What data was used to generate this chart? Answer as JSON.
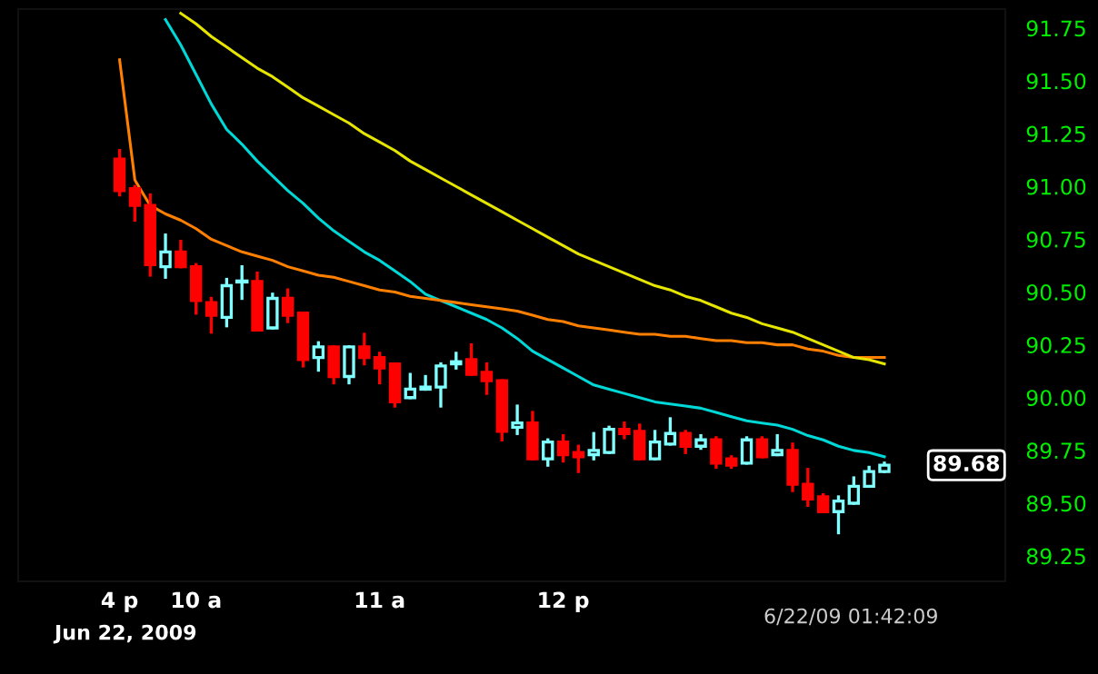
{
  "chart_data": {
    "type": "candlestick",
    "categories": [
      "4 p",
      null,
      null,
      null,
      null,
      "10 a",
      null,
      null,
      null,
      null,
      null,
      null,
      null,
      null,
      null,
      null,
      null,
      "11 a",
      null,
      null,
      null,
      null,
      null,
      null,
      null,
      null,
      null,
      null,
      null,
      "12 p",
      null,
      null,
      null,
      null,
      null,
      null,
      null,
      null,
      null,
      null,
      null,
      null,
      null,
      null,
      null,
      null,
      null,
      null,
      null,
      null,
      null
    ],
    "ohlc": [
      [
        91.13,
        91.17,
        90.96,
        90.98
      ],
      [
        90.99,
        91.0,
        90.84,
        90.91
      ],
      [
        90.91,
        90.96,
        90.58,
        90.63
      ],
      [
        90.62,
        90.77,
        90.57,
        90.69
      ],
      [
        90.69,
        90.74,
        90.62,
        90.62
      ],
      [
        90.62,
        90.63,
        90.4,
        90.46
      ],
      [
        90.45,
        90.47,
        90.31,
        90.39
      ],
      [
        90.38,
        90.56,
        90.34,
        90.53
      ],
      [
        90.55,
        90.62,
        90.47,
        90.55
      ],
      [
        90.55,
        90.59,
        90.32,
        90.32
      ],
      [
        90.33,
        90.49,
        90.33,
        90.47
      ],
      [
        90.47,
        90.51,
        90.36,
        90.39
      ],
      [
        90.4,
        90.4,
        90.15,
        90.18
      ],
      [
        90.19,
        90.26,
        90.13,
        90.24
      ],
      [
        90.24,
        90.24,
        90.07,
        90.1
      ],
      [
        90.1,
        90.24,
        90.07,
        90.24
      ],
      [
        90.24,
        90.3,
        90.16,
        90.19
      ],
      [
        90.19,
        90.21,
        90.07,
        90.14
      ],
      [
        90.16,
        90.16,
        89.96,
        89.98
      ],
      [
        90.0,
        90.11,
        90.0,
        90.04
      ],
      [
        90.04,
        90.1,
        90.04,
        90.05
      ],
      [
        90.05,
        90.16,
        89.96,
        90.15
      ],
      [
        90.16,
        90.21,
        90.14,
        90.17
      ],
      [
        90.18,
        90.25,
        90.11,
        90.11
      ],
      [
        90.12,
        90.16,
        90.02,
        90.08
      ],
      [
        90.08,
        90.08,
        89.8,
        89.84
      ],
      [
        89.86,
        89.96,
        89.83,
        89.88
      ],
      [
        89.88,
        89.93,
        89.71,
        89.71
      ],
      [
        89.71,
        89.8,
        89.68,
        89.79
      ],
      [
        89.79,
        89.82,
        89.7,
        89.73
      ],
      [
        89.74,
        89.77,
        89.65,
        89.72
      ],
      [
        89.73,
        89.83,
        89.71,
        89.75
      ],
      [
        89.74,
        89.86,
        89.74,
        89.85
      ],
      [
        89.85,
        89.88,
        89.81,
        89.83
      ],
      [
        89.84,
        89.87,
        89.71,
        89.71
      ],
      [
        89.71,
        89.84,
        89.71,
        89.79
      ],
      [
        89.78,
        89.9,
        89.78,
        89.83
      ],
      [
        89.83,
        89.84,
        89.74,
        89.77
      ],
      [
        89.77,
        89.82,
        89.76,
        89.8
      ],
      [
        89.8,
        89.81,
        89.67,
        89.69
      ],
      [
        89.71,
        89.72,
        89.67,
        89.68
      ],
      [
        89.69,
        89.81,
        89.69,
        89.8
      ],
      [
        89.8,
        89.81,
        89.72,
        89.72
      ],
      [
        89.73,
        89.82,
        89.73,
        89.75
      ],
      [
        89.75,
        89.78,
        89.56,
        89.59
      ],
      [
        89.59,
        89.66,
        89.49,
        89.52
      ],
      [
        89.53,
        89.54,
        89.46,
        89.46
      ],
      [
        89.46,
        89.53,
        89.36,
        89.51
      ],
      [
        89.5,
        89.62,
        89.5,
        89.58
      ],
      [
        89.58,
        89.67,
        89.58,
        89.65
      ],
      [
        89.65,
        89.69,
        89.65,
        89.68
      ]
    ],
    "colors": [
      "#ff0000",
      "#ff0000",
      "#ff0000",
      "#7fffff",
      "#ff0000",
      "#ff0000",
      "#ff0000",
      "#7fffff",
      "#7fffff",
      "#ff0000",
      "#7fffff",
      "#ff0000",
      "#ff0000",
      "#7fffff",
      "#ff0000",
      "#7fffff",
      "#ff0000",
      "#ff0000",
      "#ff0000",
      "#7fffff",
      "#7fffff",
      "#7fffff",
      "#7fffff",
      "#ff0000",
      "#ff0000",
      "#ff0000",
      "#7fffff",
      "#ff0000",
      "#7fffff",
      "#ff0000",
      "#ff0000",
      "#7fffff",
      "#7fffff",
      "#ff0000",
      "#ff0000",
      "#7fffff",
      "#7fffff",
      "#ff0000",
      "#7fffff",
      "#ff0000",
      "#ff0000",
      "#7fffff",
      "#ff0000",
      "#7fffff",
      "#ff0000",
      "#ff0000",
      "#ff0000",
      "#7fffff",
      "#7fffff",
      "#7fffff",
      "#7fffff"
    ],
    "series": [
      {
        "type": "line",
        "color": "#00d8d8",
        "values": [
          null,
          null,
          null,
          91.79,
          91.67,
          91.53,
          91.39,
          91.27,
          91.2,
          91.12,
          91.05,
          90.98,
          90.92,
          90.85,
          90.79,
          90.74,
          90.69,
          90.65,
          90.6,
          90.55,
          90.49,
          90.46,
          90.43,
          90.4,
          90.37,
          90.33,
          90.28,
          90.22,
          90.18,
          90.14,
          90.1,
          90.06,
          90.04,
          90.02,
          90.0,
          89.98,
          89.97,
          89.96,
          89.95,
          89.93,
          89.91,
          89.89,
          89.88,
          89.87,
          89.85,
          89.82,
          89.8,
          89.77,
          89.75,
          89.74,
          89.72
        ]
      },
      {
        "type": "line",
        "color": "#ff7f00",
        "values": [
          91.6,
          91.03,
          90.91,
          90.87,
          90.84,
          90.8,
          90.75,
          90.72,
          90.69,
          90.67,
          90.65,
          90.62,
          90.6,
          90.58,
          90.57,
          90.55,
          90.53,
          90.51,
          90.5,
          90.48,
          90.47,
          90.46,
          90.45,
          90.44,
          90.43,
          90.42,
          90.41,
          90.39,
          90.37,
          90.36,
          90.34,
          90.33,
          90.32,
          90.31,
          90.3,
          90.3,
          90.29,
          90.29,
          90.28,
          90.27,
          90.27,
          90.26,
          90.26,
          90.25,
          90.25,
          90.23,
          90.22,
          90.2,
          90.19,
          90.19,
          90.19
        ]
      },
      {
        "type": "line",
        "color": "#e5e500",
        "values": [
          null,
          null,
          null,
          null,
          91.82,
          91.77,
          91.71,
          91.66,
          91.61,
          91.56,
          91.52,
          91.47,
          91.42,
          91.38,
          91.34,
          91.3,
          91.25,
          91.21,
          91.17,
          91.12,
          91.08,
          91.04,
          91.0,
          90.96,
          90.92,
          90.88,
          90.84,
          90.8,
          90.76,
          90.72,
          90.68,
          90.65,
          90.62,
          90.59,
          90.56,
          90.53,
          90.51,
          90.48,
          90.46,
          90.43,
          90.4,
          90.38,
          90.35,
          90.33,
          90.31,
          90.28,
          90.25,
          90.22,
          90.19,
          90.18,
          90.16
        ]
      }
    ],
    "ylim": [
      89.13,
      91.84
    ],
    "yticks": [
      {
        "value": 89.25,
        "label": "89.25"
      },
      {
        "value": 89.5,
        "label": "89.50"
      },
      {
        "value": 89.75,
        "label": "89.75"
      },
      {
        "value": 90.0,
        "label": "90.00"
      },
      {
        "value": 90.25,
        "label": "90.25"
      },
      {
        "value": 90.5,
        "label": "90.50"
      },
      {
        "value": 90.75,
        "label": "90.75"
      },
      {
        "value": 91.0,
        "label": "91.00"
      },
      {
        "value": 91.25,
        "label": "91.25"
      },
      {
        "value": 91.5,
        "label": "91.50"
      },
      {
        "value": 91.75,
        "label": "91.75"
      }
    ],
    "annotations": [
      "89.68",
      "Jun 22, 2009",
      "6/22/09 01:42:09"
    ]
  }
}
